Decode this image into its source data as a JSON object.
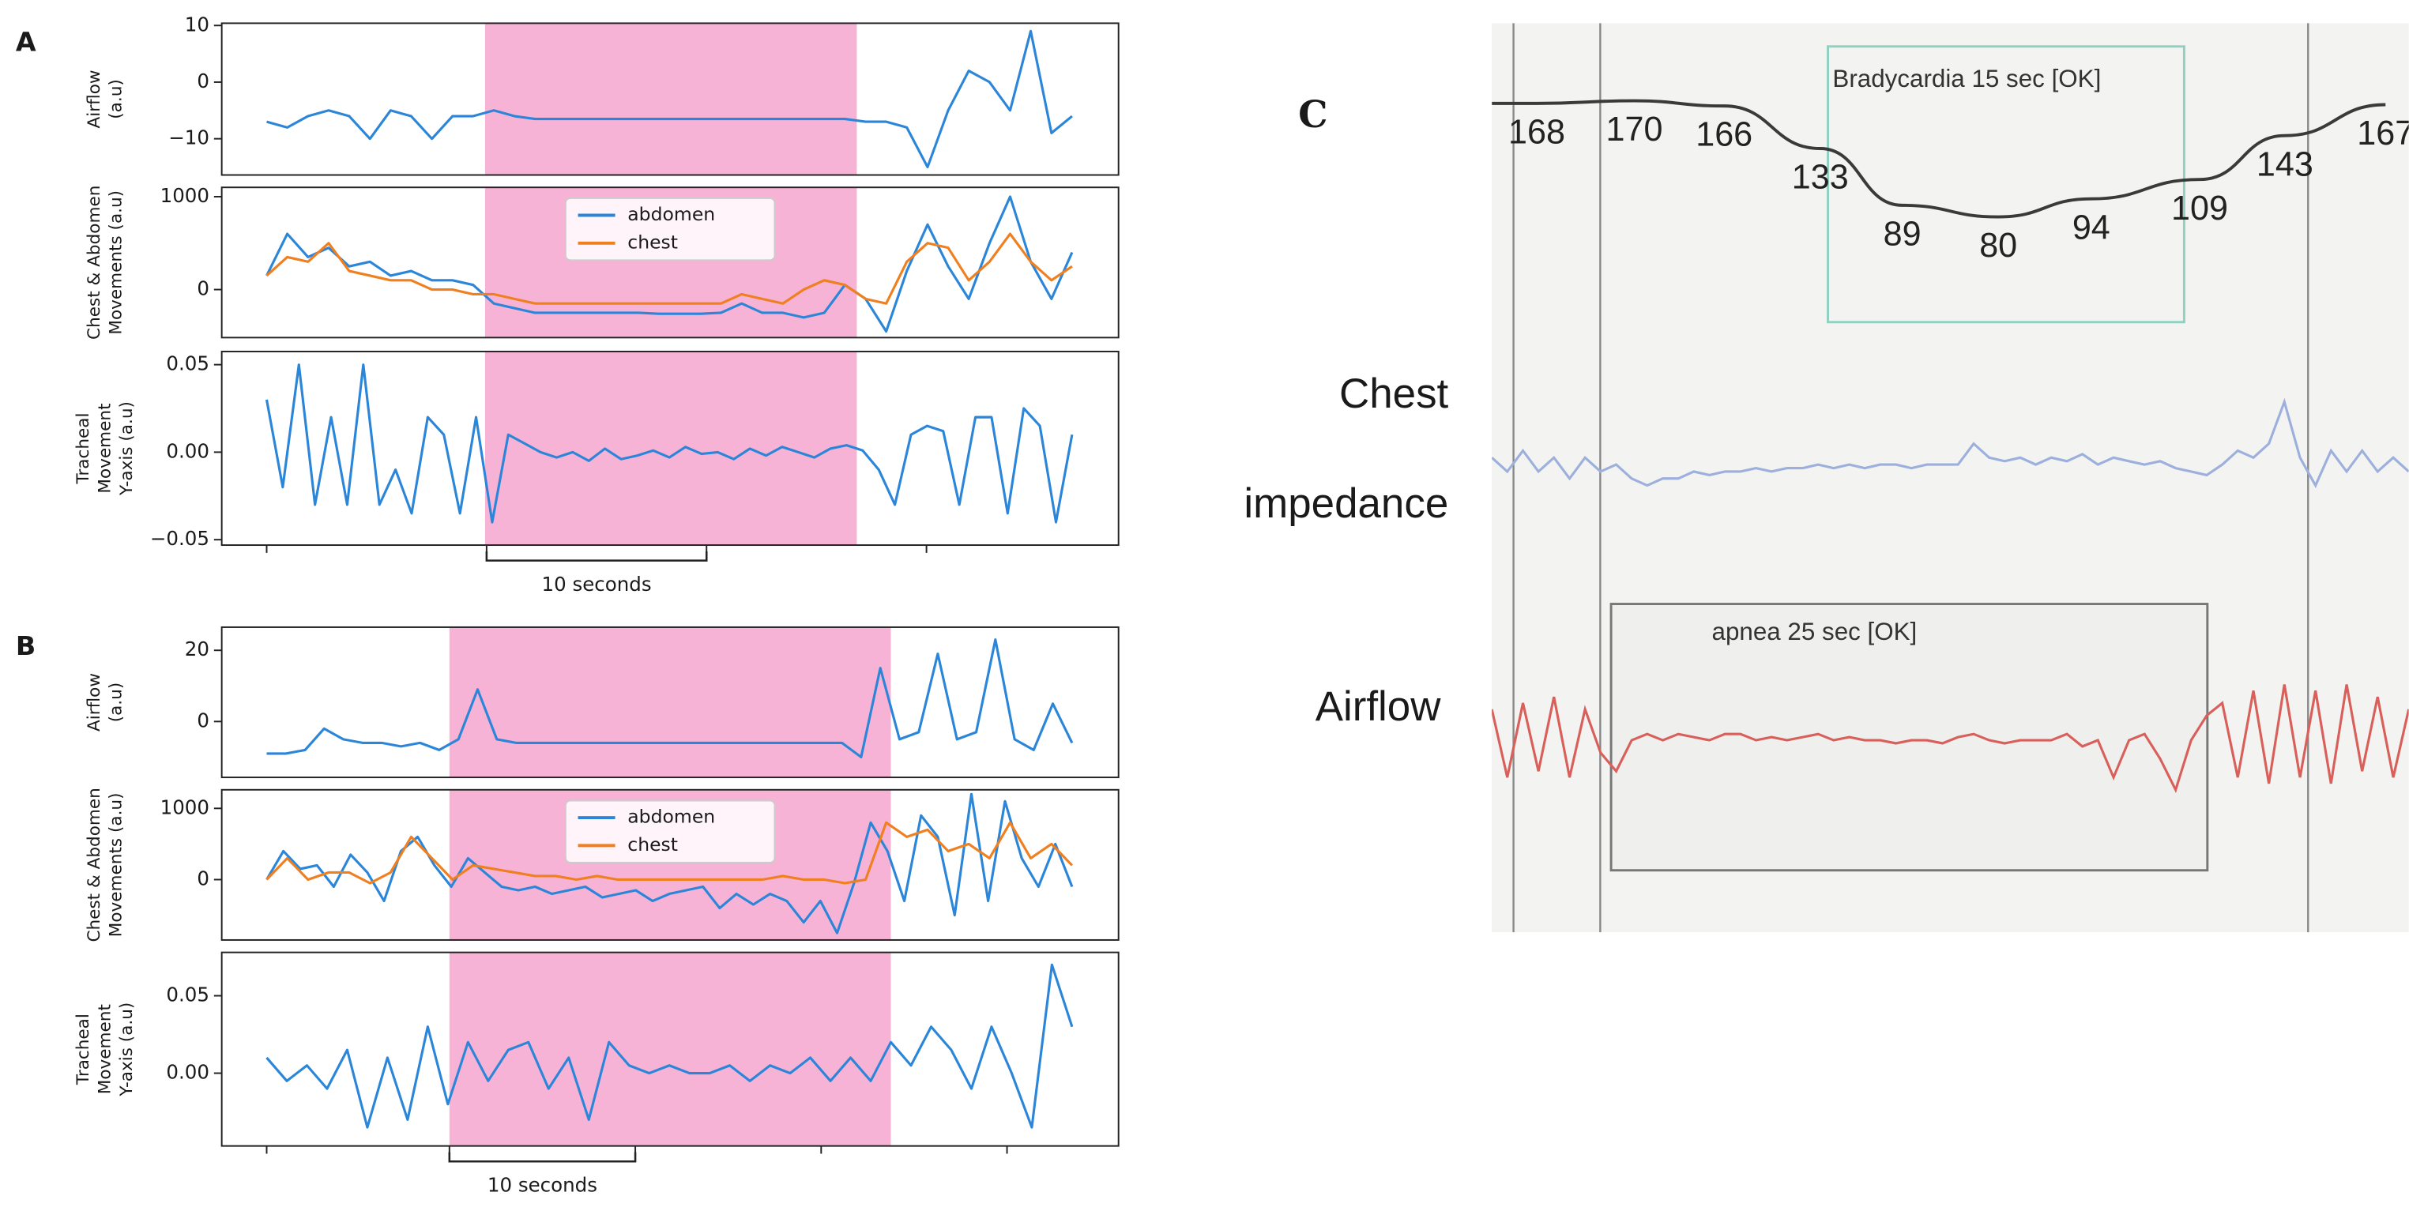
{
  "chart_data": [
    {
      "type": "line",
      "panel_label": "A",
      "ylabel": [
        "Airflow",
        "(a.u)"
      ],
      "ylim": [
        -16.4,
        10.4
      ],
      "yticks": [
        10,
        0,
        {
          "value": -10,
          "label": "−10"
        }
      ],
      "series": [
        {
          "color": "#2b86d9",
          "values": [
            -7,
            -8,
            -6,
            -5,
            -6,
            -10,
            -5,
            -6,
            -10,
            -6,
            -6,
            -5,
            -6,
            -6.5,
            -6.5,
            -6.5,
            -6.5,
            -6.5,
            -6.5,
            -6.5,
            -6.5,
            -6.5,
            -6.5,
            -6.5,
            -6.5,
            -6.5,
            -6.5,
            -6.5,
            -6.5,
            -7,
            -7,
            -8,
            -15,
            -5,
            2,
            0,
            -5,
            9,
            -9,
            -6
          ]
        }
      ]
    },
    {
      "type": "line",
      "ylabel": [
        "Chest & Abdomen",
        "Movements (a.u)"
      ],
      "ylim": [
        -517,
        1100
      ],
      "yticks": [
        1000,
        0
      ],
      "legend": "upper center",
      "series": [
        {
          "name": "abdomen",
          "color": "#2b86d9",
          "values": [
            150,
            600,
            350,
            450,
            250,
            300,
            150,
            200,
            100,
            100,
            50,
            -150,
            -200,
            -250,
            -250,
            -250,
            -250,
            -250,
            -250,
            -260,
            -260,
            -260,
            -250,
            -150,
            -250,
            -250,
            -300,
            -250,
            50,
            -100,
            -450,
            200,
            700,
            250,
            -100,
            500,
            1000,
            300,
            -100,
            400
          ]
        },
        {
          "name": "chest",
          "color": "#f07f1f",
          "values": [
            150,
            350,
            300,
            500,
            200,
            150,
            100,
            100,
            0,
            0,
            -50,
            -50,
            -100,
            -150,
            -150,
            -150,
            -150,
            -150,
            -150,
            -150,
            -150,
            -150,
            -150,
            -50,
            -100,
            -150,
            0,
            100,
            50,
            -100,
            -150,
            300,
            500,
            450,
            100,
            300,
            600,
            300,
            100,
            250
          ]
        }
      ]
    },
    {
      "type": "line",
      "ylabel": [
        "Tracheal",
        "Movement",
        "Y-axis (a.u)"
      ],
      "ylim": [
        -0.0531,
        0.0575
      ],
      "yticks": [
        0.05,
        {
          "value": 0,
          "label": "0.00"
        },
        {
          "value": -0.05,
          "label": "−0.05"
        }
      ],
      "annotation": "10 seconds",
      "series": [
        {
          "color": "#2b86d9",
          "values": [
            0.03,
            -0.02,
            0.05,
            -0.03,
            0.02,
            -0.03,
            0.05,
            -0.03,
            -0.01,
            -0.035,
            0.02,
            0.01,
            -0.035,
            0.02,
            -0.04,
            0.01,
            0.005,
            0.0,
            -0.003,
            0.0,
            -0.005,
            0.002,
            -0.004,
            -0.002,
            0.001,
            -0.003,
            0.003,
            -0.001,
            0.0,
            -0.004,
            0.002,
            -0.002,
            0.003,
            0.0,
            -0.003,
            0.002,
            0.004,
            0.001,
            -0.01,
            -0.03,
            0.01,
            0.015,
            0.012,
            -0.03,
            0.02,
            0.02,
            -0.035,
            0.025,
            0.015,
            -0.04,
            0.01
          ]
        }
      ]
    },
    {
      "type": "line",
      "panel_label": "B",
      "ylabel": [
        "Airflow",
        "(a.u)"
      ],
      "ylim": [
        -15.7,
        26.5
      ],
      "yticks": [
        20,
        0
      ],
      "series": [
        {
          "color": "#2b86d9",
          "values": [
            -9,
            -9,
            -8,
            -2,
            -5,
            -6,
            -6,
            -7,
            -6,
            -8,
            -5,
            9,
            -5,
            -6,
            -6,
            -6,
            -6,
            -6,
            -6,
            -6,
            -6,
            -6,
            -6,
            -6,
            -6,
            -6,
            -6,
            -6,
            -6,
            -6,
            -6,
            -10,
            15,
            -5,
            -3,
            19,
            -5,
            -3,
            23,
            -5,
            -8,
            5,
            -6
          ]
        }
      ]
    },
    {
      "type": "line",
      "ylabel": [
        "Chest & Abdomen",
        "Movements (a.u)"
      ],
      "ylim": [
        -848,
        1261
      ],
      "yticks": [
        1000,
        0
      ],
      "legend": "upper center",
      "series": [
        {
          "name": "abdomen",
          "color": "#2b86d9",
          "values": [
            0,
            400,
            150,
            200,
            -100,
            350,
            100,
            -300,
            400,
            600,
            200,
            -100,
            300,
            100,
            -100,
            -150,
            -100,
            -200,
            -150,
            -100,
            -250,
            -200,
            -150,
            -300,
            -200,
            -150,
            -100,
            -400,
            -200,
            -350,
            -200,
            -300,
            -600,
            -300,
            -750,
            -50,
            800,
            400,
            -300,
            900,
            600,
            -500,
            1200,
            -300,
            1100,
            300,
            -100,
            500,
            -100
          ]
        },
        {
          "name": "chest",
          "color": "#f07f1f",
          "values": [
            0,
            300,
            0,
            100,
            100,
            -50,
            100,
            600,
            300,
            0,
            200,
            150,
            100,
            50,
            50,
            0,
            50,
            0,
            0,
            0,
            0,
            0,
            0,
            0,
            0,
            50,
            0,
            0,
            -50,
            0,
            800,
            600,
            700,
            400,
            500,
            300,
            800,
            300,
            500,
            200
          ]
        }
      ]
    },
    {
      "type": "line",
      "ylabel": [
        "Tracheal",
        "Movement",
        "Y-axis (a.u)"
      ],
      "ylim": [
        -0.047,
        0.078
      ],
      "yticks": [
        0.05,
        {
          "value": 0,
          "label": "0.00"
        }
      ],
      "annotation": "10 seconds",
      "series": [
        {
          "color": "#2b86d9",
          "values": [
            0.01,
            -0.005,
            0.005,
            -0.01,
            0.015,
            -0.035,
            0.01,
            -0.03,
            0.03,
            -0.02,
            0.02,
            -0.005,
            0.015,
            0.02,
            -0.01,
            0.01,
            -0.03,
            0.02,
            0.005,
            0,
            0.005,
            0,
            0,
            0.005,
            -0.005,
            0.005,
            0,
            0.01,
            -0.005,
            0.01,
            -0.005,
            0.02,
            0.005,
            0.03,
            0.015,
            -0.01,
            0.03,
            0.0,
            -0.035,
            0.07,
            0.03
          ]
        }
      ]
    },
    {
      "type": "monitor",
      "panel_label": "C",
      "annotations": [
        "Bradycardia 15 sec [OK]",
        "apnea 25 sec [OK]"
      ],
      "trace_labels": [
        "Chest",
        "impedance",
        "Airflow"
      ],
      "series": [
        {
          "color": "#3a3a3a",
          "values": [
            168,
            170,
            166,
            133,
            89,
            80,
            94,
            109,
            143,
            167
          ]
        },
        {
          "color": "#9db0dd",
          "values": [
            0.1,
            -0.1,
            0.2,
            -0.1,
            0.1,
            -0.2,
            0.1,
            -0.1,
            0.0,
            -0.2,
            -0.3,
            -0.2,
            -0.2,
            -0.1,
            -0.15,
            -0.1,
            -0.1,
            -0.05,
            -0.1,
            -0.05,
            -0.05,
            0.0,
            -0.05,
            0.0,
            -0.05,
            0.0,
            0.0,
            -0.05,
            0.0,
            0.0,
            0.0,
            0.3,
            0.1,
            0.05,
            0.1,
            0.0,
            0.1,
            0.05,
            0.15,
            0.0,
            0.1,
            0.05,
            0.0,
            0.05,
            -0.05,
            -0.1,
            -0.15,
            0.0,
            0.2,
            0.1,
            0.3,
            0.9,
            0.1,
            -0.3,
            0.2,
            -0.1,
            0.2,
            -0.1,
            0.1,
            -0.1
          ]
        },
        {
          "color": "#d9605a",
          "values": [
            0.5,
            -0.6,
            0.6,
            -0.5,
            0.7,
            -0.6,
            0.5,
            -0.2,
            -0.5,
            0.0,
            0.1,
            0.0,
            0.1,
            0.05,
            0.0,
            0.1,
            0.1,
            0.0,
            0.05,
            0.0,
            0.05,
            0.1,
            0.0,
            0.05,
            0.0,
            0.0,
            -0.05,
            0.0,
            0.0,
            -0.05,
            0.05,
            0.1,
            0.0,
            -0.05,
            0.0,
            0.0,
            0.0,
            0.1,
            -0.1,
            0.0,
            -0.6,
            0.0,
            0.1,
            -0.3,
            -0.8,
            0.0,
            0.4,
            0.6,
            -0.6,
            0.8,
            -0.7,
            0.9,
            -0.6,
            0.8,
            -0.7,
            0.9,
            -0.5,
            0.7,
            -0.6,
            0.5
          ]
        }
      ]
    }
  ]
}
